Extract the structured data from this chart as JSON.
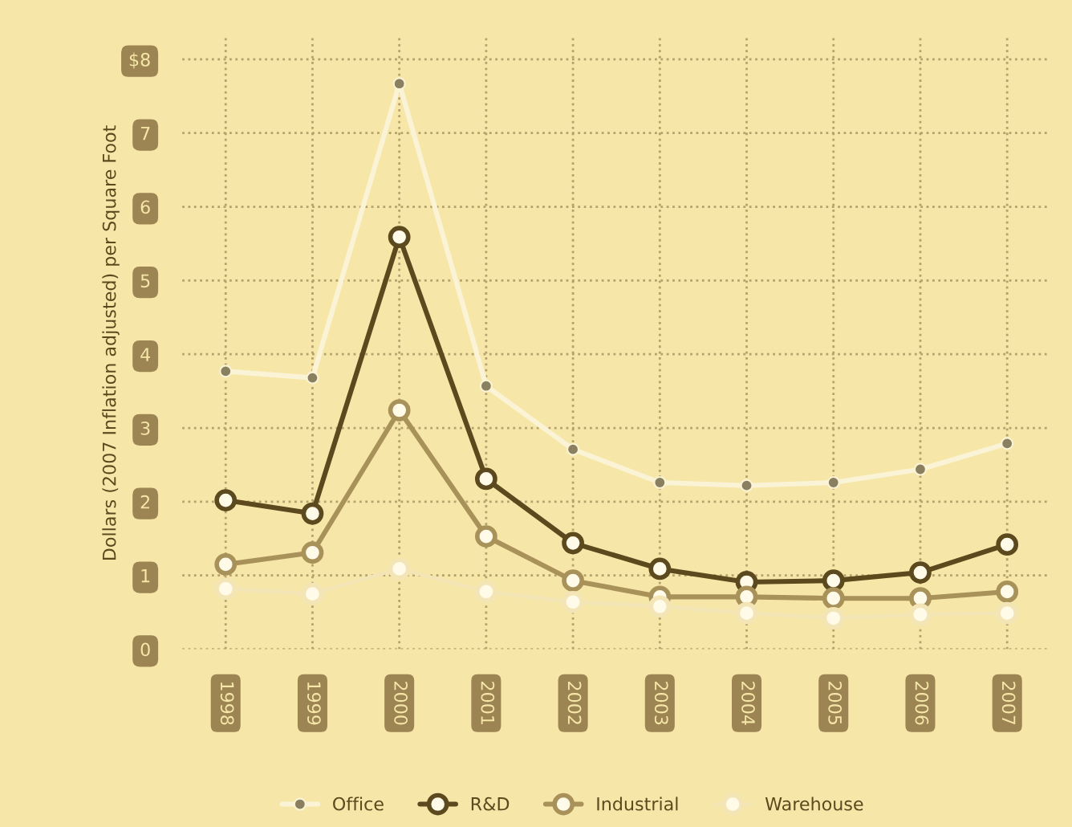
{
  "chart_data": {
    "type": "line",
    "ylabel": "Dollars (2007 Inflation adjusted) per Square Foot",
    "categories": [
      "1998",
      "1999",
      "2000",
      "2001",
      "2002",
      "2003",
      "2004",
      "2005",
      "2006",
      "2007"
    ],
    "series": [
      {
        "name": "Office",
        "color": "#fbf3d6",
        "values": [
          3.77,
          3.68,
          7.67,
          3.57,
          2.71,
          2.26,
          2.22,
          2.26,
          2.44,
          2.79
        ]
      },
      {
        "name": "R&D",
        "color": "#5c4a1e",
        "values": [
          2.02,
          1.84,
          5.59,
          2.31,
          1.44,
          1.09,
          0.91,
          0.93,
          1.04,
          1.42
        ]
      },
      {
        "name": "Industrial",
        "color": "#a8925a",
        "values": [
          1.15,
          1.31,
          3.24,
          1.53,
          0.93,
          0.71,
          0.71,
          0.69,
          0.69,
          0.78
        ]
      },
      {
        "name": "Warehouse",
        "color": "#f3e5b6",
        "values": [
          0.82,
          0.75,
          1.09,
          0.78,
          0.64,
          0.58,
          0.49,
          0.42,
          0.47,
          0.49
        ]
      }
    ],
    "ylim": [
      0,
      8.3
    ],
    "yticks": [
      0,
      1,
      2,
      3,
      4,
      5,
      6,
      7,
      {
        "value": 8,
        "label": "$8"
      }
    ],
    "grid": true,
    "legend": "bottom",
    "marker": "circle",
    "line_style": "solid"
  }
}
